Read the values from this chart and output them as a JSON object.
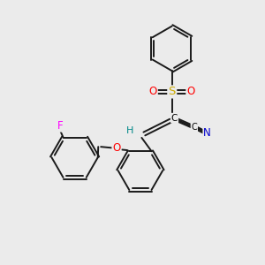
{
  "bg_color": "#ebebeb",
  "bond_color": "#1a1a1a",
  "bond_width": 1.4,
  "colors": {
    "C": "#000000",
    "N": "#0000cc",
    "O": "#ff0000",
    "S": "#ccaa00",
    "F": "#ff00ff",
    "H": "#008888"
  },
  "figsize": [
    3.0,
    3.0
  ],
  "dpi": 100
}
